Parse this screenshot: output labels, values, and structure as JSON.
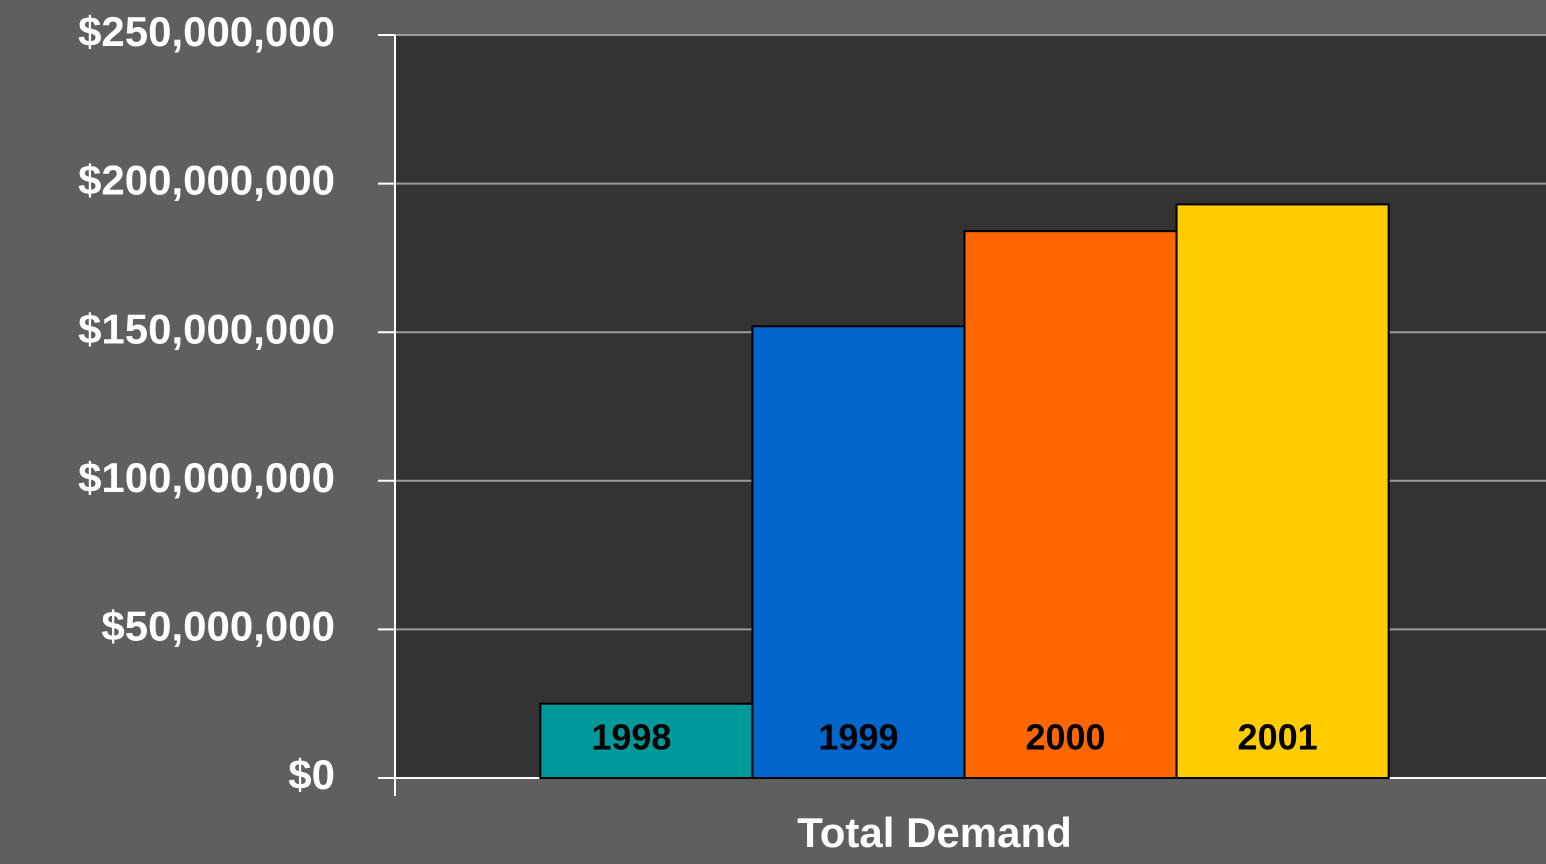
{
  "chart_data": {
    "type": "bar",
    "categories": [
      "Total Demand"
    ],
    "series": [
      {
        "name": "1998",
        "color": "#009999",
        "values": [
          25000000
        ]
      },
      {
        "name": "1999",
        "color": "#0066cc",
        "values": [
          152000000
        ]
      },
      {
        "name": "2000",
        "color": "#ff6600",
        "values": [
          184000000
        ]
      },
      {
        "name": "2001",
        "color": "#ffcc00",
        "values": [
          193000000
        ]
      }
    ],
    "ylim": [
      0,
      250000000
    ],
    "yticks": [
      {
        "value": 0,
        "label": "$0"
      },
      {
        "value": 50000000,
        "label": "$50,000,000"
      },
      {
        "value": 100000000,
        "label": "$100,000,000"
      },
      {
        "value": 150000000,
        "label": "$150,000,000"
      },
      {
        "value": 200000000,
        "label": "$200,000,000"
      },
      {
        "value": 250000000,
        "label": "$250,000,000"
      }
    ],
    "grid": true
  }
}
